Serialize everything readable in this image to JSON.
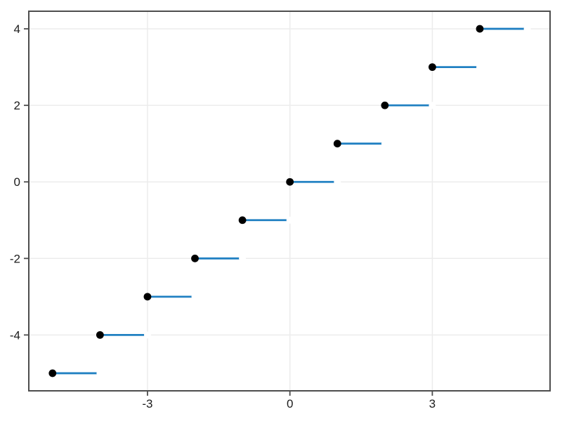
{
  "figure": {
    "title": "",
    "background_color": "#ffffff"
  },
  "chart_data": {
    "type": "line",
    "subtype": "step-function-floor",
    "title": "",
    "xlabel": "",
    "ylabel": "",
    "xlim": [
      -5.5,
      5.48
    ],
    "ylim": [
      -5.46,
      4.46
    ],
    "x_ticks": [
      -3,
      0,
      3
    ],
    "y_ticks": [
      -4,
      -2,
      0,
      2,
      4
    ],
    "grid": true,
    "legend": "none",
    "series": [
      {
        "name": "floor-step-segments",
        "segments": [
          {
            "y": -5,
            "x0": -5,
            "x1": -4
          },
          {
            "y": -4,
            "x0": -4,
            "x1": -3
          },
          {
            "y": -3,
            "x0": -3,
            "x1": -2
          },
          {
            "y": -2,
            "x0": -2,
            "x1": -1
          },
          {
            "y": -1,
            "x0": -1,
            "x1": 0
          },
          {
            "y": 0,
            "x0": 0,
            "x1": 1
          },
          {
            "y": 1,
            "x0": 1,
            "x1": 2
          },
          {
            "y": 2,
            "x0": 2,
            "x1": 3
          },
          {
            "y": 3,
            "x0": 3,
            "x1": 4
          },
          {
            "y": 4,
            "x0": 4,
            "x1": 5
          }
        ],
        "closed_points": [
          [
            -5,
            -5
          ],
          [
            -4,
            -4
          ],
          [
            -3,
            -3
          ],
          [
            -2,
            -2
          ],
          [
            -1,
            -1
          ],
          [
            0,
            0
          ],
          [
            1,
            1
          ],
          [
            2,
            2
          ],
          [
            3,
            3
          ],
          [
            4,
            4
          ]
        ],
        "open_points": [
          [
            -4,
            -5
          ],
          [
            -3,
            -4
          ],
          [
            -2,
            -3
          ],
          [
            -1,
            -2
          ],
          [
            0,
            -1
          ],
          [
            1,
            0
          ],
          [
            2,
            1
          ],
          [
            3,
            2
          ],
          [
            4,
            3
          ],
          [
            5,
            4
          ]
        ]
      }
    ],
    "colors": {
      "line": "#2080c2",
      "closed_marker": "#000000",
      "open_marker": "#ffffff",
      "grid": "#ececec",
      "spine": "#4d4d4d",
      "tick": "#4d4d4d",
      "tick_label": "#1c1c1c",
      "plot_background": "#ffffff"
    }
  }
}
